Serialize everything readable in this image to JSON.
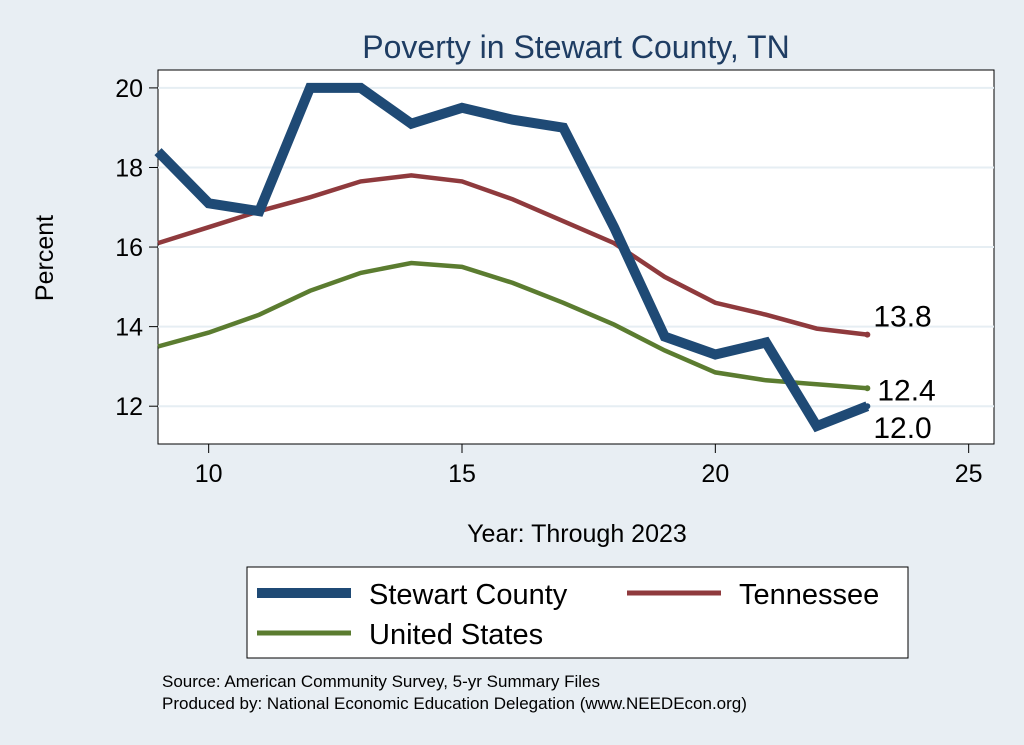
{
  "chart_data": {
    "type": "line",
    "title": "Poverty in Stewart County, TN",
    "xlabel": "Year: Through 2023",
    "ylabel": "Percent",
    "xlim": [
      9,
      25.5
    ],
    "ylim": [
      11.05,
      20.45
    ],
    "xticks": [
      10,
      15,
      20,
      25
    ],
    "yticks": [
      12,
      14,
      16,
      18,
      20
    ],
    "grid": true,
    "legend_position": "bottom",
    "series": [
      {
        "name": "Stewart County",
        "color": "#1f4a75",
        "x": [
          9,
          10,
          11,
          12,
          13,
          14,
          15,
          16,
          17,
          18,
          19,
          20,
          21,
          22,
          23
        ],
        "y": [
          18.4,
          17.1,
          16.9,
          20.0,
          20.0,
          19.1,
          19.5,
          19.2,
          19.0,
          16.5,
          13.75,
          13.3,
          13.6,
          11.5,
          12.0
        ],
        "end_label": "12.0"
      },
      {
        "name": "Tennessee",
        "color": "#8f3a3d",
        "x": [
          9,
          10,
          11,
          12,
          13,
          14,
          15,
          16,
          17,
          18,
          19,
          20,
          21,
          22,
          23
        ],
        "y": [
          16.1,
          16.5,
          16.9,
          17.25,
          17.65,
          17.8,
          17.65,
          17.2,
          16.65,
          16.1,
          15.25,
          14.6,
          14.3,
          13.95,
          13.8
        ],
        "end_label": "13.8"
      },
      {
        "name": "United States",
        "color": "#5b7c30",
        "x": [
          9,
          10,
          11,
          12,
          13,
          14,
          15,
          16,
          17,
          18,
          19,
          20,
          21,
          22,
          23
        ],
        "y": [
          13.5,
          13.85,
          14.3,
          14.9,
          15.35,
          15.6,
          15.5,
          15.1,
          14.6,
          14.05,
          13.4,
          12.85,
          12.65,
          12.55,
          12.45
        ],
        "end_label": "12.4"
      }
    ]
  },
  "footer": {
    "source": "Source: American Community Survey, 5-yr Summary Files",
    "produced": "Produced by: National Economic Education Delegation (www.NEEDEcon.org)"
  }
}
